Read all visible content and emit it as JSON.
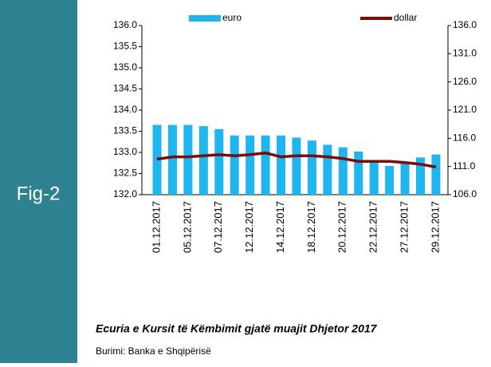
{
  "figure_label": "Fig-2",
  "caption": "Ecuria e Kursit të Këmbimit gjatë muajit Dhjetor 2017",
  "source": "Burimi: Banka e Shqipërisë",
  "chart_data": {
    "type": "bar-line",
    "categories": [
      "01.12.2017",
      null,
      "05.12.2017",
      null,
      "07.12.2017",
      null,
      "12.12.2017",
      null,
      "14.12.2017",
      null,
      "18.12.2017",
      null,
      "20.12.2017",
      null,
      "22.12.2017",
      null,
      "27.12.2017",
      null,
      "29.12.2017"
    ],
    "series": [
      {
        "name": "euro",
        "color": "#1fb5ee",
        "type": "bar",
        "values": [
          133.65,
          133.65,
          133.65,
          133.62,
          133.55,
          133.4,
          133.4,
          133.4,
          133.4,
          133.35,
          133.28,
          133.18,
          133.12,
          133.02,
          132.8,
          132.68,
          132.75,
          132.88,
          132.95
        ]
      },
      {
        "name": "dollar",
        "color": "#7a0c0c",
        "type": "line",
        "axis": "y2",
        "values": [
          112.3,
          112.7,
          112.7,
          112.9,
          113.1,
          112.9,
          113.1,
          113.4,
          112.7,
          112.9,
          112.9,
          112.7,
          112.4,
          111.9,
          111.9,
          111.9,
          111.7,
          111.4,
          110.9
        ]
      }
    ],
    "ylim": [
      132,
      136
    ],
    "yticks": [
      {
        "value": 132,
        "label": "132.0"
      },
      {
        "value": 132.5,
        "label": "132.5"
      },
      {
        "value": 133,
        "label": "133.0"
      },
      {
        "value": 133.5,
        "label": "133.5"
      },
      {
        "value": 134,
        "label": "134.0"
      },
      {
        "value": 134.5,
        "label": "134.5"
      },
      {
        "value": 135,
        "label": "135.0"
      },
      {
        "value": 135.5,
        "label": "135.5"
      },
      {
        "value": 136,
        "label": "136.0"
      }
    ],
    "y2lim": [
      106,
      136
    ],
    "y2ticks": [
      {
        "value": 106,
        "label": "106.0"
      },
      {
        "value": 111,
        "label": "111.0"
      },
      {
        "value": 116,
        "label": "116.0"
      },
      {
        "value": 121,
        "label": "121.0"
      },
      {
        "value": 126,
        "label": "126.0"
      },
      {
        "value": 131,
        "label": "131.0"
      },
      {
        "value": 136,
        "label": "136.0"
      }
    ]
  }
}
